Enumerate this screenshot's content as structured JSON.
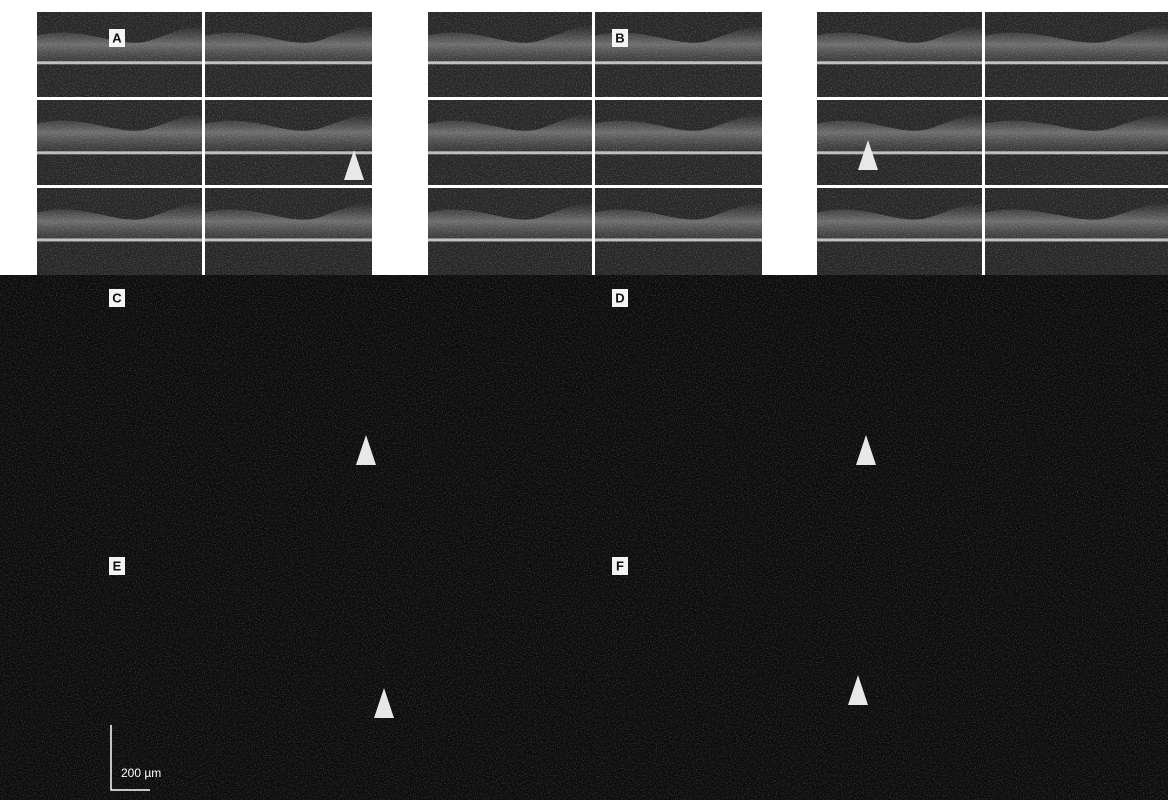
{
  "panels": [
    {
      "label": "A"
    },
    {
      "label": "B"
    },
    {
      "label": "C"
    },
    {
      "label": "D"
    },
    {
      "label": "E"
    },
    {
      "label": "F"
    }
  ],
  "scale_bar": {
    "label": "200 µm"
  }
}
